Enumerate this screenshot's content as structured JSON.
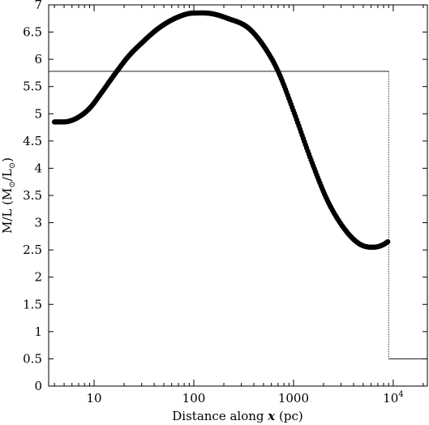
{
  "chart_data": {
    "type": "scatter",
    "xlabel": "Distance along x (pc)",
    "xlabel_parts": {
      "before": "Distance along ",
      "var": "x",
      "after": " (pc)"
    },
    "ylabel": "M/L (M⊙/L⊙)",
    "ylabel_parts": {
      "ml": "M/L (M",
      "sub1": "⊙",
      "mid": "/L",
      "sub2": "⊙",
      "end": ")"
    },
    "x_scale": "log",
    "xlim": [
      3.5,
      22000
    ],
    "ylim": [
      0,
      7
    ],
    "x_tick_labels": [
      {
        "value": 10,
        "label": "10"
      },
      {
        "value": 100,
        "label": "100"
      },
      {
        "value": 1000,
        "label": "1000"
      },
      {
        "value": 10000,
        "label": "10",
        "sup": "4"
      }
    ],
    "y_ticks": [
      0,
      0.5,
      1,
      1.5,
      2,
      2.5,
      3,
      3.5,
      4,
      4.5,
      5,
      5.5,
      6,
      6.5,
      7
    ],
    "y_tick_labels": [
      "0",
      "0.5",
      "1",
      "1.5",
      "2",
      "2.5",
      "3",
      "3.5",
      "4",
      "4.5",
      "5",
      "5.5",
      "6",
      "6.5",
      "7"
    ],
    "curve_anchor_points": {
      "x": [
        4.0,
        4.5,
        5.5,
        7,
        9,
        12,
        16,
        22,
        30,
        45,
        70,
        100,
        150,
        220,
        350,
        500,
        700,
        1000,
        1500,
        2200,
        3200,
        4500,
        6000,
        7000,
        8000,
        8800
      ],
      "y": [
        4.85,
        4.85,
        4.86,
        4.94,
        5.1,
        5.4,
        5.72,
        6.05,
        6.3,
        6.58,
        6.78,
        6.85,
        6.84,
        6.75,
        6.58,
        6.25,
        5.78,
        5.05,
        4.15,
        3.4,
        2.9,
        2.62,
        2.55,
        2.56,
        2.6,
        2.65
      ]
    },
    "step_line": {
      "level_high": 5.78,
      "x_break": 9000,
      "level_low": 0.5
    },
    "grid": false,
    "legend": "none"
  }
}
